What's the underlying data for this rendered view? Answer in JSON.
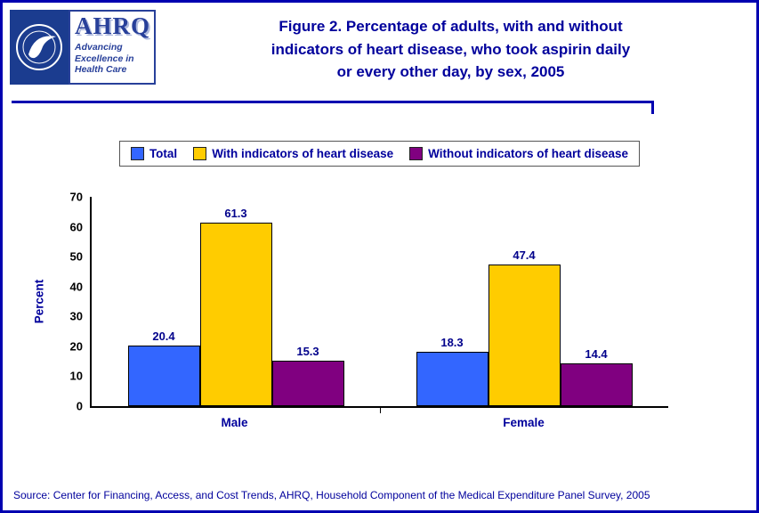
{
  "header": {
    "ahrq_logo": {
      "acronym": "AHRQ",
      "tagline_lines": [
        "Advancing",
        "Excellence in",
        "Health Care"
      ]
    },
    "title_lines": [
      "Figure 2. Percentage of adults, with and without",
      "indicators of heart disease, who took aspirin daily",
      "or every other day, by sex, 2005"
    ]
  },
  "icons": {
    "hhs_logo": "hhs-seal"
  },
  "chart_data": {
    "type": "bar",
    "title": "Figure 2. Percentage of adults, with and without indicators of heart disease, who took aspirin daily or every other day, by sex, 2005",
    "categories": [
      "Male",
      "Female"
    ],
    "series": [
      {
        "name": "Total",
        "color": "#3366FF",
        "values": [
          20.4,
          18.3
        ]
      },
      {
        "name": "With indicators of heart disease",
        "color": "#FFCC00",
        "values": [
          61.3,
          47.4
        ]
      },
      {
        "name": "Without indicators of heart disease",
        "color": "#800080",
        "values": [
          15.3,
          14.4
        ]
      }
    ],
    "xlabel": "",
    "ylabel": "Percent",
    "ylim": [
      0,
      70
    ],
    "yticks": [
      0,
      10,
      20,
      30,
      40,
      50,
      60,
      70
    ],
    "grid": false,
    "legend_position": "top",
    "value_labels": true
  },
  "source": "Source: Center for Financing, Access, and Cost Trends, AHRQ, Household Component of the Medical Expenditure Panel Survey, 2005",
  "colors": {
    "accent_text": "#00009C",
    "page_border": "#0000B0",
    "axis": "#000000",
    "bar_blue": "#3366FF",
    "bar_yellow": "#FFCC00",
    "bar_purple": "#800080"
  }
}
